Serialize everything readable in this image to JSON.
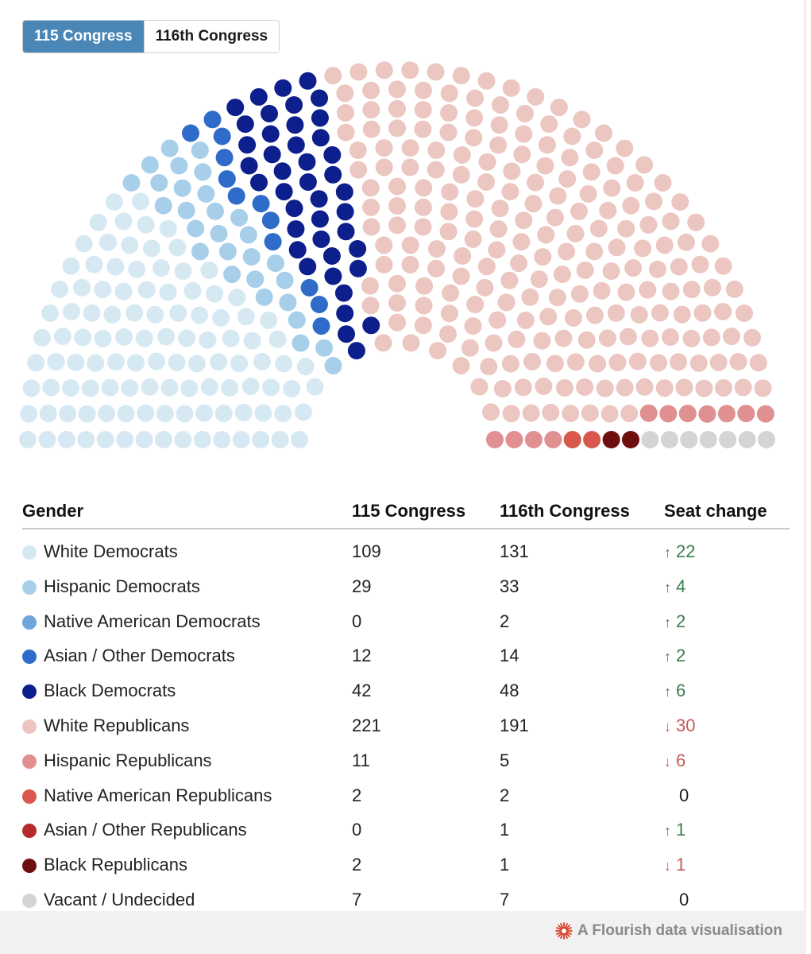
{
  "tabs": [
    {
      "label": "115 Congress",
      "active": true
    },
    {
      "label": "116th Congress",
      "active": false
    }
  ],
  "table": {
    "headers": {
      "group": "Gender",
      "col1": "115 Congress",
      "col2": "116th Congress",
      "change": "Seat change"
    }
  },
  "chart_data": {
    "type": "parliament",
    "total_seats": 435,
    "display_rows": 15,
    "shown_congress": "115 Congress",
    "series": [
      {
        "name": "White Democrats",
        "color": "#d6e9f3",
        "values": [
          109,
          131
        ],
        "change": "22",
        "direction": "up"
      },
      {
        "name": "Hispanic Democrats",
        "color": "#a7cfe9",
        "values": [
          29,
          33
        ],
        "change": "4",
        "direction": "up"
      },
      {
        "name": "Native American Democrats",
        "color": "#6fa6de",
        "values": [
          0,
          2
        ],
        "change": "2",
        "direction": "up"
      },
      {
        "name": "Asian / Other Democrats",
        "color": "#2f6bc8",
        "values": [
          12,
          14
        ],
        "change": "2",
        "direction": "up"
      },
      {
        "name": "Black Democrats",
        "color": "#0d1f8c",
        "values": [
          42,
          48
        ],
        "change": "6",
        "direction": "up"
      },
      {
        "name": "White Republicans",
        "color": "#ecc6c1",
        "values": [
          221,
          191
        ],
        "change": "30",
        "direction": "down"
      },
      {
        "name": "Hispanic Republicans",
        "color": "#e09090",
        "values": [
          11,
          5
        ],
        "change": "6",
        "direction": "down"
      },
      {
        "name": "Native American Republicans",
        "color": "#d8584b",
        "values": [
          2,
          2
        ],
        "change": "0",
        "direction": "none"
      },
      {
        "name": "Asian / Other Republicans",
        "color": "#b52b2b",
        "values": [
          0,
          1
        ],
        "change": "1",
        "direction": "up"
      },
      {
        "name": "Black Republicans",
        "color": "#6e0f0f",
        "values": [
          2,
          1
        ],
        "change": "1",
        "direction": "down"
      },
      {
        "name": "Vacant / Undecided",
        "color": "#d4d4d4",
        "values": [
          7,
          7
        ],
        "change": "0",
        "direction": "none"
      }
    ]
  },
  "footer": {
    "credit": "A Flourish data visualisation",
    "icon": "flourish-logo-icon"
  }
}
